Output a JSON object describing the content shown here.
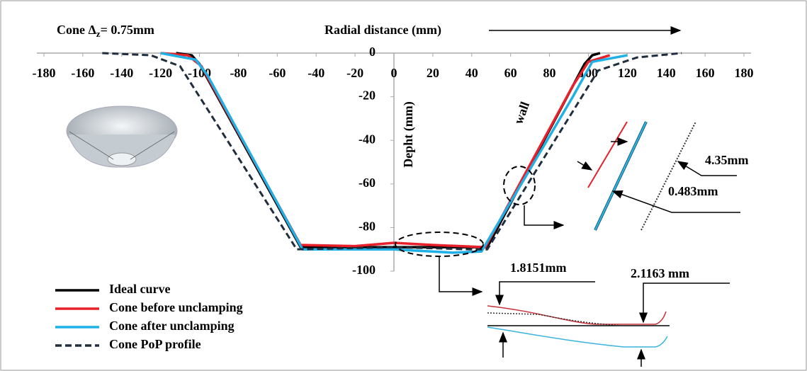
{
  "chart_data": {
    "type": "line",
    "title": [
      "Cone Δ",
      "z",
      "= 0.75mm"
    ],
    "x_label": "Radial distance (mm)",
    "y_label": "Depht (mm)",
    "annotations": [
      "wall",
      "4.35mm",
      "0.483mm",
      "1.8151mm",
      "2.1163 mm"
    ],
    "xlim": [
      -180,
      180
    ],
    "ylim": [
      -100,
      0
    ],
    "xticks": [
      -180,
      -160,
      -140,
      -120,
      -100,
      -80,
      -60,
      -40,
      -20,
      0,
      20,
      40,
      60,
      80,
      100,
      120,
      140,
      160,
      180
    ],
    "yticks": [
      0,
      -20,
      -40,
      -60,
      -80,
      -100
    ],
    "legend": "lower left",
    "series": [
      {
        "name": "Ideal curve",
        "color": "#000000",
        "dash": false,
        "x": [
          -112,
          -104,
          -100,
          -48,
          48,
          98,
          102,
          106
        ],
        "values": [
          0,
          -1,
          -5,
          -89,
          -89,
          -5,
          -1,
          0
        ]
      },
      {
        "name": "Cone before unclamping",
        "color": "#e8202a",
        "dash": false,
        "x": [
          -120,
          -106,
          -99,
          -48,
          -20,
          0,
          20,
          47,
          92,
          100,
          111
        ],
        "values": [
          0,
          -1,
          -6,
          -88,
          -88.5,
          -87,
          -88,
          -89,
          -15,
          -4,
          -1
        ]
      },
      {
        "name": "Cone after unclamping",
        "color": "#1fb0e6",
        "dash": false,
        "x": [
          -120,
          -102,
          -96,
          -47,
          0,
          30,
          45,
          92,
          102,
          120
        ],
        "values": [
          0,
          -3,
          -10,
          -90,
          -90,
          -91.5,
          -91,
          -20,
          -4,
          -1
        ]
      },
      {
        "name": "Cone PoP profile",
        "color": "#1f2d3d",
        "dash": true,
        "x": [
          -150,
          -125,
          -110,
          -50,
          0,
          40,
          48,
          105,
          125,
          148
        ],
        "values": [
          0,
          -1,
          -6,
          -90,
          -89,
          -90,
          -90,
          -8,
          -2,
          0
        ]
      }
    ]
  }
}
